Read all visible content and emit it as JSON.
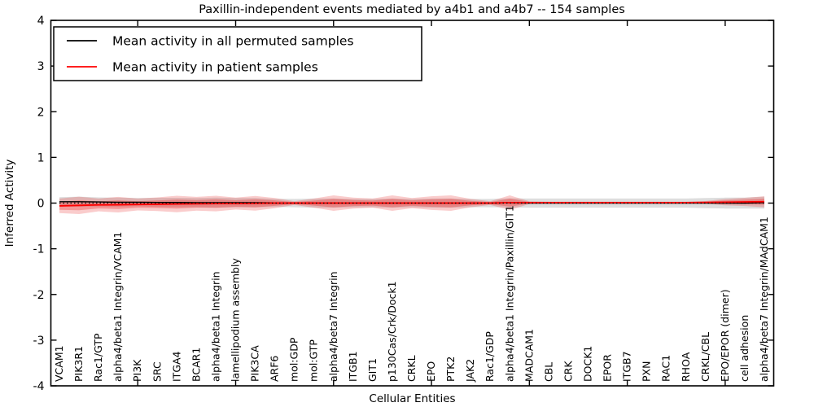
{
  "chart_data": {
    "type": "area",
    "title": "Paxillin-independent events mediated by a4b1 and a4b7 -- 154 samples",
    "xlabel": "Cellular Entities",
    "ylabel": "Inferred Activity",
    "ylim": [
      -4,
      4
    ],
    "yticks": [
      4,
      3,
      2,
      1,
      0,
      -1,
      -2,
      -3,
      -4
    ],
    "top_tick_indices": [
      4,
      9,
      14,
      19,
      24,
      29,
      34
    ],
    "grid": false,
    "legend_position": "upper left",
    "legend": [
      {
        "label": "Mean activity in all permuted samples",
        "color": "#000000"
      },
      {
        "label": "Mean activity in patient samples",
        "color": "#ff0000"
      }
    ],
    "categories": [
      "VCAM1",
      "PIK3R1",
      "Rac1/GTP",
      "alpha4/beta1 Integrin/VCAM1",
      "PI3K",
      "SRC",
      "ITGA4",
      "BCAR1",
      "alpha4/beta1 Integrin",
      "lamellipodium assembly",
      "PIK3CA",
      "ARF6",
      "mol:GDP",
      "mol:GTP",
      "alpha4/beta7 Integrin",
      "ITGB1",
      "GIT1",
      "p130Cas/Crk/Dock1",
      "CRKL",
      "EPO",
      "PTK2",
      "JAK2",
      "Rac1/GDP",
      "alpha4/beta1 Integrin/Paxillin/GIT1",
      "MADCAM1",
      "CBL",
      "CRK",
      "DOCK1",
      "EPOR",
      "ITGB7",
      "PXN",
      "RAC1",
      "RHOA",
      "CRKL/CBL",
      "EPO/EPOR (dimer)",
      "cell adhesion",
      "alpha4/beta7 Integrin/MAdCAM1"
    ],
    "series": [
      {
        "name": "Mean activity in all permuted samples",
        "color": "#000000",
        "band_color": "rgba(120,120,120,0.25)",
        "values": [
          0.03,
          0.03,
          0.025,
          0.02,
          0.02,
          0.015,
          0.015,
          0.01,
          0.01,
          0.01,
          0.01,
          0.005,
          0,
          0,
          0,
          0,
          0,
          0,
          0,
          0,
          0,
          0,
          0,
          0.005,
          0,
          0,
          0,
          0,
          0,
          0,
          0,
          0,
          0,
          0,
          0,
          0,
          0.01
        ],
        "band_halfwidth": [
          0.1,
          0.11,
          0.1,
          0.1,
          0.09,
          0.1,
          0.1,
          0.1,
          0.11,
          0.1,
          0.1,
          0.09,
          0.09,
          0.1,
          0.1,
          0.09,
          0.09,
          0.1,
          0.09,
          0.1,
          0.1,
          0.09,
          0.09,
          0.1,
          0.1,
          0.1,
          0.1,
          0.1,
          0.1,
          0.1,
          0.1,
          0.1,
          0.1,
          0.11,
          0.12,
          0.12,
          0.13
        ]
      },
      {
        "name": "Mean activity in patient samples",
        "color": "#ff0000",
        "band_color": "rgba(235,50,50,0.25)",
        "band_inner_color": "rgba(235,50,50,0.35)",
        "values": [
          -0.06,
          -0.05,
          -0.04,
          -0.035,
          -0.03,
          -0.025,
          -0.02,
          -0.015,
          -0.01,
          -0.01,
          -0.005,
          0,
          0,
          0,
          0,
          0,
          0,
          0,
          0,
          0,
          0,
          0,
          0,
          0.01,
          0.01,
          0.01,
          0.01,
          0.01,
          0.01,
          0.01,
          0.01,
          0.01,
          0.01,
          0.015,
          0.02,
          0.025,
          0.03
        ],
        "band_halfwidth": [
          0.16,
          0.19,
          0.14,
          0.17,
          0.13,
          0.15,
          0.18,
          0.15,
          0.17,
          0.13,
          0.16,
          0.11,
          0.04,
          0.1,
          0.17,
          0.12,
          0.1,
          0.17,
          0.11,
          0.15,
          0.17,
          0.09,
          0.04,
          0.16,
          0.03,
          0.02,
          0.02,
          0.02,
          0.02,
          0.02,
          0.02,
          0.02,
          0.02,
          0.03,
          0.07,
          0.09,
          0.12
        ]
      }
    ],
    "zero_reference_line": {
      "value": 0,
      "style": "dotted",
      "color": "#000000"
    }
  }
}
